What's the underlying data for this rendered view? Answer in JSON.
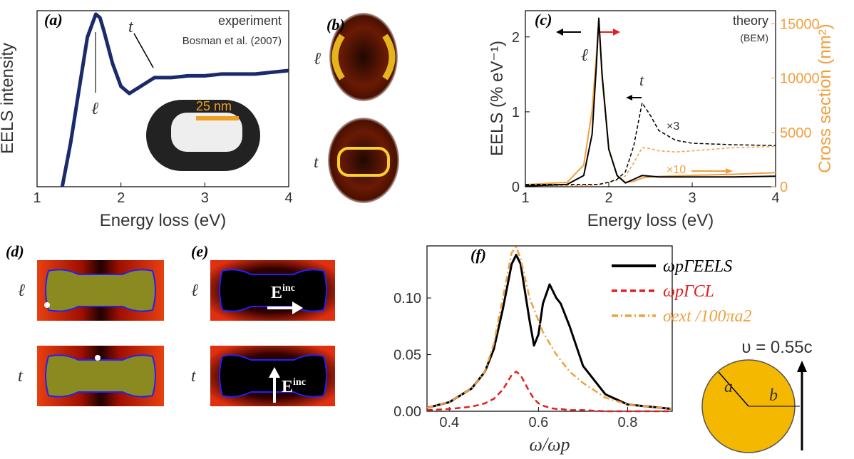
{
  "chart_data": [
    {
      "type": "line",
      "panel": "(a)",
      "xlabel": "Energy loss (eV)",
      "ylabel": "EELS intensity",
      "x": [
        1.3,
        1.4,
        1.5,
        1.6,
        1.7,
        1.75,
        1.8,
        1.9,
        2.0,
        2.1,
        2.2,
        2.4,
        2.6,
        2.8,
        3.0,
        3.2,
        3.4,
        3.6,
        3.8,
        4.0
      ],
      "xlim": [
        1,
        4
      ],
      "xticks": [
        1,
        2,
        3,
        4
      ],
      "ylim": [
        0,
        1
      ],
      "series": [
        {
          "color": "#1b2a6b",
          "width": 5,
          "values": [
            0,
            0.25,
            0.55,
            0.85,
            0.98,
            0.96,
            0.88,
            0.7,
            0.57,
            0.53,
            0.56,
            0.62,
            0.62,
            0.63,
            0.63,
            0.64,
            0.64,
            0.64,
            0.65,
            0.66
          ]
        }
      ],
      "annotations": [
        "experiment",
        "Bosman et al. (2007)",
        "ℓ",
        "t",
        "25 nm"
      ]
    },
    {
      "type": "line",
      "panel": "(c)",
      "xlabel": "Energy loss (eV)",
      "ylabel": "EELS (% eV⁻¹)",
      "y2label": "Cross section (nm²)",
      "x": [
        1,
        1.5,
        1.7,
        1.8,
        1.85,
        1.88,
        1.92,
        2.0,
        2.1,
        2.2,
        2.3,
        2.4,
        2.5,
        2.6,
        2.8,
        3.0,
        3.5,
        4.0
      ],
      "xlim": [
        1,
        4
      ],
      "xticks": [
        1,
        2,
        3,
        4
      ],
      "ylim": [
        0,
        2.35
      ],
      "yticks": [
        0,
        1,
        2
      ],
      "y2lim": [
        0,
        16200
      ],
      "y2ticks": [
        0,
        5000,
        10000,
        15000
      ],
      "y2color": "#f0a040",
      "series": [
        {
          "color": "#f0a040",
          "width": 2,
          "axis": "y2",
          "values": [
            200,
            400,
            2000,
            7000,
            12000,
            15300,
            10000,
            3500,
            1000,
            400,
            500,
            800,
            900,
            950,
            1000,
            1050,
            1150,
            1300
          ]
        },
        {
          "color": "#f0a040",
          "width": 1.5,
          "dash": "4,3",
          "axis": "y2",
          "values": [
            100,
            100,
            100,
            150,
            200,
            250,
            300,
            400,
            600,
            1000,
            2200,
            3600,
            3500,
            3300,
            3200,
            3300,
            3600,
            3700
          ]
        },
        {
          "color": "#000000",
          "width": 2,
          "values": [
            0.01,
            0.03,
            0.15,
            0.7,
            1.6,
            2.25,
            1.5,
            0.5,
            0.15,
            0.05,
            0.1,
            0.15,
            0.14,
            0.13,
            0.13,
            0.13,
            0.13,
            0.14
          ]
        },
        {
          "color": "#000000",
          "width": 1.5,
          "dash": "5,3",
          "values": [
            0.03,
            0.03,
            0.03,
            0.03,
            0.03,
            0.03,
            0.04,
            0.06,
            0.1,
            0.2,
            0.55,
            1.12,
            0.95,
            0.75,
            0.62,
            0.58,
            0.56,
            0.55
          ]
        }
      ],
      "annotations": [
        "theory",
        "(BEM)",
        "ℓ",
        "t",
        "×3",
        "×10"
      ]
    },
    {
      "type": "line",
      "panel": "(f)",
      "xlabel": "ω/ωp",
      "x": [
        0.35,
        0.4,
        0.45,
        0.48,
        0.5,
        0.52,
        0.54,
        0.55,
        0.56,
        0.58,
        0.59,
        0.6,
        0.61,
        0.625,
        0.64,
        0.65,
        0.67,
        0.7,
        0.75,
        0.8,
        0.9
      ],
      "xlim": [
        0.35,
        0.9
      ],
      "xticks": [
        0.4,
        0.6,
        0.8
      ],
      "ylim": [
        0,
        0.146
      ],
      "yticks": [
        {
          "value": 0,
          "label": "0.00"
        },
        {
          "value": 0.05,
          "label": "0.05"
        },
        {
          "value": 0.1,
          "label": "0.10"
        }
      ],
      "series": [
        {
          "name": "ωpΓEELS",
          "color": "#000000",
          "width": 3,
          "values": [
            0.003,
            0.008,
            0.02,
            0.035,
            0.055,
            0.09,
            0.13,
            0.138,
            0.13,
            0.08,
            0.058,
            0.068,
            0.095,
            0.112,
            0.1,
            0.095,
            0.075,
            0.04,
            0.015,
            0.006,
            0.002
          ]
        },
        {
          "name": "ωpΓCL",
          "color": "#e02020",
          "width": 2.5,
          "dash": "8,5",
          "values": [
            0.001,
            0.002,
            0.004,
            0.007,
            0.011,
            0.019,
            0.032,
            0.035,
            0.032,
            0.017,
            0.011,
            0.007,
            0.005,
            0.003,
            0.002,
            0.002,
            0.001,
            0.001,
            0,
            0,
            0
          ]
        },
        {
          "name": "σext /100πa2",
          "color": "#f0a040",
          "width": 2.5,
          "dash": "9,4,2,4",
          "values": [
            0.003,
            0.008,
            0.02,
            0.035,
            0.06,
            0.1,
            0.14,
            0.145,
            0.135,
            0.1,
            0.09,
            0.08,
            0.07,
            0.06,
            0.05,
            0.045,
            0.035,
            0.025,
            0.012,
            0.006,
            0.002
          ]
        }
      ],
      "annotations": [
        "υ = 0.55c",
        "a",
        "b"
      ]
    }
  ],
  "images": {
    "b": {
      "panel": "(b)",
      "labels": [
        "ℓ",
        "t"
      ]
    },
    "d": {
      "panel": "(d)",
      "labels": [
        "ℓ",
        "t"
      ]
    },
    "e": {
      "panel": "(e)",
      "labels": [
        "ℓ",
        "t"
      ],
      "field": "E",
      "field_sup": "inc"
    }
  }
}
